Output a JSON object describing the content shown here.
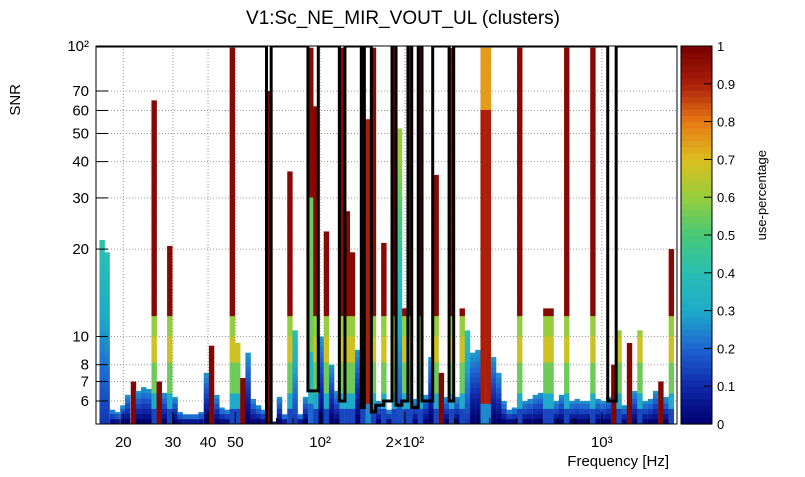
{
  "chart_data": {
    "type": "heatmap",
    "title": "V1:Sc_NE_MIR_VOUT_UL (clusters)",
    "xlabel": "Frequency [Hz]",
    "ylabel": "SNR",
    "x_scale": "log",
    "y_scale": "log",
    "xlim": [
      16,
      1850
    ],
    "ylim": [
      5,
      100
    ],
    "grid": true,
    "x_ticks": [
      {
        "value": 20,
        "label": "20"
      },
      {
        "value": 30,
        "label": "30"
      },
      {
        "value": 40,
        "label": "40"
      },
      {
        "value": 50,
        "label": "50"
      },
      {
        "value": 100,
        "label": "10²"
      },
      {
        "value": 200,
        "label": "2×10²"
      },
      {
        "value": 1000,
        "label": "10³"
      }
    ],
    "y_ticks": [
      {
        "value": 6,
        "label": "6"
      },
      {
        "value": 7,
        "label": "7"
      },
      {
        "value": 8,
        "label": "8"
      },
      {
        "value": 10,
        "label": "10"
      },
      {
        "value": 20,
        "label": "20"
      },
      {
        "value": 30,
        "label": "30"
      },
      {
        "value": 40,
        "label": "40"
      },
      {
        "value": 50,
        "label": "50"
      },
      {
        "value": 60,
        "label": "60"
      },
      {
        "value": 70,
        "label": "70"
      },
      {
        "value": 100,
        "label": "10²"
      }
    ],
    "colorbar": {
      "label": "use-percentage",
      "range": [
        0,
        1
      ],
      "ticks": [
        "0",
        "0.1",
        "0.2",
        "0.3",
        "0.4",
        "0.5",
        "0.6",
        "0.7",
        "0.8",
        "0.9",
        "1"
      ]
    },
    "columns": [
      {
        "f": 16.8,
        "top": 21.5,
        "profile": "cyan"
      },
      {
        "f": 17.5,
        "top": 19.5,
        "profile": "cyan"
      },
      {
        "f": 18.3,
        "top": 5.6,
        "profile": "low"
      },
      {
        "f": 19.0,
        "top": 5.5,
        "profile": "low"
      },
      {
        "f": 19.9,
        "top": 5.8,
        "profile": "low"
      },
      {
        "f": 20.7,
        "top": 6.3,
        "profile": "low"
      },
      {
        "f": 21.7,
        "top": 7.0,
        "profile": "fullred"
      },
      {
        "f": 22.6,
        "top": 6.5,
        "profile": "low"
      },
      {
        "f": 23.6,
        "top": 6.7,
        "profile": "low"
      },
      {
        "f": 24.6,
        "top": 6.6,
        "profile": "low"
      },
      {
        "f": 25.7,
        "top": 65,
        "profile": "red"
      },
      {
        "f": 26.8,
        "top": 7.0,
        "profile": "fullred"
      },
      {
        "f": 28.0,
        "top": 6.4,
        "profile": "low"
      },
      {
        "f": 29.2,
        "top": 20.5,
        "profile": "red"
      },
      {
        "f": 30.5,
        "top": 6.2,
        "profile": "low"
      },
      {
        "f": 31.8,
        "top": 5.5,
        "profile": "low"
      },
      {
        "f": 33.2,
        "top": 5.4,
        "profile": "low"
      },
      {
        "f": 34.6,
        "top": 5.4,
        "profile": "low"
      },
      {
        "f": 36.1,
        "top": 5.4,
        "profile": "low"
      },
      {
        "f": 37.7,
        "top": 5.5,
        "profile": "low"
      },
      {
        "f": 39.4,
        "top": 7.5,
        "profile": "low"
      },
      {
        "f": 41.1,
        "top": 9.3,
        "profile": "fullred"
      },
      {
        "f": 42.9,
        "top": 6.3,
        "profile": "low"
      },
      {
        "f": 44.8,
        "top": 5.7,
        "profile": "low"
      },
      {
        "f": 46.7,
        "top": 5.6,
        "profile": "low"
      },
      {
        "f": 48.7,
        "top": 100,
        "profile": "red"
      },
      {
        "f": 50.9,
        "top": 9.5,
        "profile": "red"
      },
      {
        "f": 53.1,
        "top": 7.2,
        "profile": "fullred"
      },
      {
        "f": 55.4,
        "top": 8.8,
        "profile": "low"
      },
      {
        "f": 57.8,
        "top": 6.1,
        "profile": "low"
      },
      {
        "f": 60.4,
        "top": 5.8,
        "profile": "low"
      },
      {
        "f": 63.0,
        "top": 5.6,
        "profile": "low"
      },
      {
        "f": 65.7,
        "top": 70,
        "profile": "fullred"
      },
      {
        "f": 68.6,
        "top": 5.1,
        "profile": "low"
      },
      {
        "f": 71.6,
        "top": 6.2,
        "profile": "low"
      },
      {
        "f": 74.7,
        "top": 5.4,
        "profile": "low"
      },
      {
        "f": 78.0,
        "top": 37,
        "profile": "red"
      },
      {
        "f": 81.4,
        "top": 10.5,
        "profile": "cyan"
      },
      {
        "f": 84.9,
        "top": 5.4,
        "profile": "low"
      },
      {
        "f": 88.6,
        "top": 6.2,
        "profile": "low"
      },
      {
        "f": 92.5,
        "top": 100,
        "profile": "greenred"
      },
      {
        "f": 96.5,
        "top": 62,
        "profile": "red"
      },
      {
        "f": 100.7,
        "top": 10.0,
        "profile": "low"
      },
      {
        "f": 105.1,
        "top": 23,
        "profile": "red"
      },
      {
        "f": 109.7,
        "top": 8.0,
        "profile": "low"
      },
      {
        "f": 114.5,
        "top": 6.5,
        "profile": "low"
      },
      {
        "f": 119.5,
        "top": 100,
        "profile": "red"
      },
      {
        "f": 124.7,
        "top": 27,
        "profile": "red"
      },
      {
        "f": 130.1,
        "top": 19.5,
        "profile": "red"
      },
      {
        "f": 135.8,
        "top": 9.0,
        "profile": "low"
      },
      {
        "f": 141.7,
        "top": 100,
        "profile": "red"
      },
      {
        "f": 147.9,
        "top": 56,
        "profile": "orangered"
      },
      {
        "f": 154.4,
        "top": 100,
        "profile": "red"
      },
      {
        "f": 161.1,
        "top": 6.0,
        "profile": "low"
      },
      {
        "f": 168.1,
        "top": 21,
        "profile": "red"
      },
      {
        "f": 175.5,
        "top": 5.6,
        "profile": "low"
      },
      {
        "f": 183.1,
        "top": 100,
        "profile": "red"
      },
      {
        "f": 191.1,
        "top": 52,
        "profile": "green"
      },
      {
        "f": 199.5,
        "top": 12.5,
        "profile": "red"
      },
      {
        "f": 208.2,
        "top": 100,
        "profile": "red"
      },
      {
        "f": 217.3,
        "top": 6.1,
        "profile": "low"
      },
      {
        "f": 226.8,
        "top": 100,
        "profile": "red"
      },
      {
        "f": 236.7,
        "top": 6.3,
        "profile": "low"
      },
      {
        "f": 247.0,
        "top": 8.5,
        "profile": "low"
      },
      {
        "f": 257.8,
        "top": 36,
        "profile": "red"
      },
      {
        "f": 269.0,
        "top": 7.5,
        "profile": "fullred"
      },
      {
        "f": 280.8,
        "top": 6.2,
        "profile": "low"
      },
      {
        "f": 293.0,
        "top": 100,
        "profile": "red"
      },
      {
        "f": 305.8,
        "top": 6.2,
        "profile": "low"
      },
      {
        "f": 319.1,
        "top": 12.5,
        "profile": "red"
      },
      {
        "f": 333.0,
        "top": 10.5,
        "profile": "cyan"
      },
      {
        "f": 347.6,
        "top": 8.8,
        "profile": "low"
      },
      {
        "f": 362.7,
        "top": 9.0,
        "profile": "low"
      },
      {
        "f": 378.6,
        "top": 100,
        "profile": "orangered"
      },
      {
        "f": 395.1,
        "top": 100,
        "profile": "orangered"
      },
      {
        "f": 412.3,
        "top": 8.5,
        "profile": "low"
      },
      {
        "f": 430.3,
        "top": 7.5,
        "profile": "low"
      },
      {
        "f": 449.1,
        "top": 6.0,
        "profile": "low"
      },
      {
        "f": 468.7,
        "top": 5.6,
        "profile": "low"
      },
      {
        "f": 489.1,
        "top": 5.7,
        "profile": "low"
      },
      {
        "f": 510.5,
        "top": 100,
        "profile": "red"
      },
      {
        "f": 532.8,
        "top": 6.0,
        "profile": "low"
      },
      {
        "f": 556.0,
        "top": 6.1,
        "profile": "low"
      },
      {
        "f": 580.3,
        "top": 6.3,
        "profile": "low"
      },
      {
        "f": 605.6,
        "top": 6.4,
        "profile": "low"
      },
      {
        "f": 632.1,
        "top": 12.5,
        "profile": "red"
      },
      {
        "f": 659.7,
        "top": 12.5,
        "profile": "red"
      },
      {
        "f": 688.5,
        "top": 6.0,
        "profile": "low"
      },
      {
        "f": 718.6,
        "top": 6.3,
        "profile": "low"
      },
      {
        "f": 749.9,
        "top": 100,
        "profile": "red"
      },
      {
        "f": 782.7,
        "top": 6.0,
        "profile": "low"
      },
      {
        "f": 816.9,
        "top": 6.1,
        "profile": "low"
      },
      {
        "f": 852.5,
        "top": 6.0,
        "profile": "low"
      },
      {
        "f": 889.8,
        "top": 6.0,
        "profile": "low"
      },
      {
        "f": 928.7,
        "top": 100,
        "profile": "red"
      },
      {
        "f": 969.2,
        "top": 6.1,
        "profile": "low"
      },
      {
        "f": 1011.6,
        "top": 6.0,
        "profile": "low"
      },
      {
        "f": 1055.8,
        "top": 6.2,
        "profile": "low"
      },
      {
        "f": 1101.9,
        "top": 8.0,
        "profile": "fullred"
      },
      {
        "f": 1150.0,
        "top": 10.5,
        "profile": "red"
      },
      {
        "f": 1200.3,
        "top": 5.8,
        "profile": "low"
      },
      {
        "f": 1252.7,
        "top": 9.5,
        "profile": "fullred"
      },
      {
        "f": 1307.4,
        "top": 6.5,
        "profile": "low"
      },
      {
        "f": 1364.5,
        "top": 10.5,
        "profile": "red"
      },
      {
        "f": 1424.2,
        "top": 6.0,
        "profile": "low"
      },
      {
        "f": 1486.4,
        "top": 6.1,
        "profile": "low"
      },
      {
        "f": 1551.4,
        "top": 6.5,
        "profile": "low"
      },
      {
        "f": 1619.1,
        "top": 7.0,
        "profile": "fullred"
      },
      {
        "f": 1689.8,
        "top": 6.2,
        "profile": "low"
      },
      {
        "f": 1763.7,
        "top": 20,
        "profile": "red"
      }
    ],
    "cluster_outline": [
      [
        16.0,
        100
      ],
      [
        64.5,
        100
      ],
      [
        64.5,
        5.0
      ],
      [
        67.0,
        5.0
      ],
      [
        67.0,
        100
      ],
      [
        90.5,
        100
      ],
      [
        90.5,
        6.5
      ],
      [
        98.5,
        6.5
      ],
      [
        98.5,
        100
      ],
      [
        117.0,
        100
      ],
      [
        117.0,
        6.0
      ],
      [
        122.5,
        6.0
      ],
      [
        122.5,
        100
      ],
      [
        140.0,
        100
      ],
      [
        140.0,
        5.7
      ],
      [
        143.5,
        5.7
      ],
      [
        143.5,
        100
      ],
      [
        152.0,
        100
      ],
      [
        152.0,
        5.5
      ],
      [
        157.5,
        5.5
      ],
      [
        157.5,
        5.8
      ],
      [
        168.0,
        5.8
      ],
      [
        168.0,
        6.0
      ],
      [
        180.0,
        6.0
      ],
      [
        180.0,
        100
      ],
      [
        186.0,
        100
      ],
      [
        186.0,
        5.8
      ],
      [
        195.0,
        5.8
      ],
      [
        195.0,
        6.0
      ],
      [
        205.0,
        6.0
      ],
      [
        205.0,
        100
      ],
      [
        211.5,
        100
      ],
      [
        211.5,
        5.7
      ],
      [
        223.0,
        5.7
      ],
      [
        223.0,
        100
      ],
      [
        230.0,
        100
      ],
      [
        230.0,
        6.0
      ],
      [
        251.0,
        6.0
      ],
      [
        251.0,
        100
      ],
      [
        287.0,
        100
      ],
      [
        287.0,
        6.0
      ],
      [
        298.0,
        6.0
      ],
      [
        298.0,
        100
      ],
      [
        1050,
        100
      ],
      [
        1050,
        6.0
      ],
      [
        1125,
        6.0
      ],
      [
        1125,
        100
      ],
      [
        1850,
        100
      ]
    ]
  }
}
